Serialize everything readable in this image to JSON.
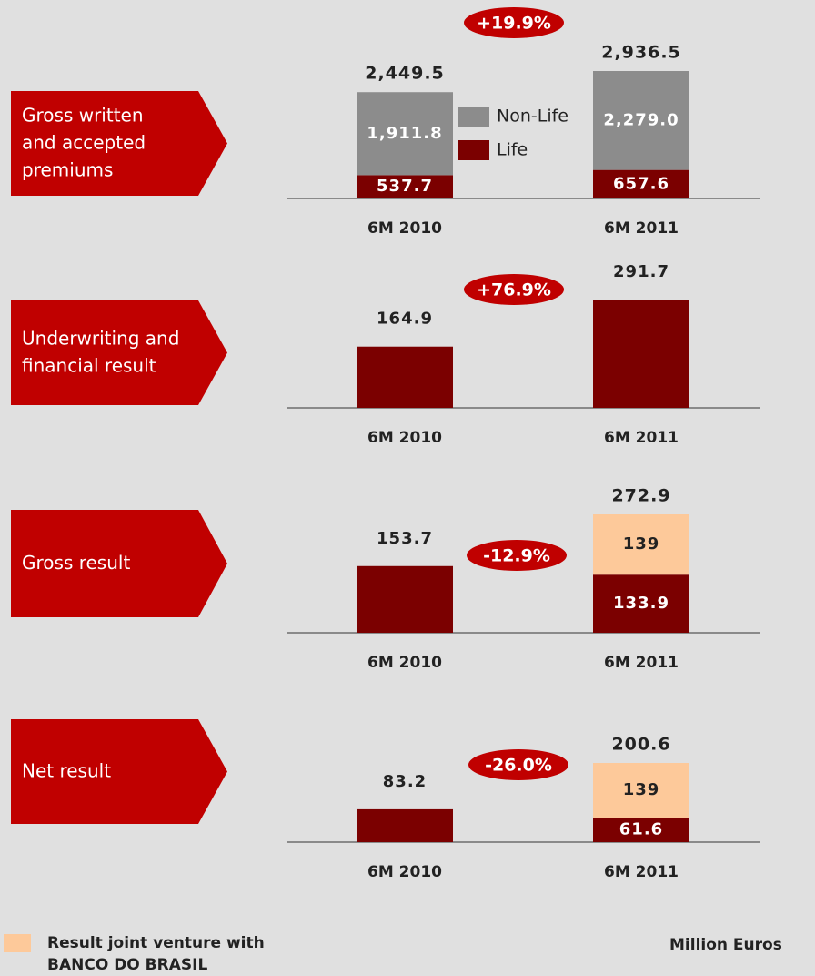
{
  "unit_note": "Million Euros",
  "legend": {
    "label": "Result joint venture with BANCO DO BRASIL",
    "color": "#fdc99a"
  },
  "chart_data": [
    {
      "type": "bar",
      "label": "Gross written and accepted premiums",
      "categories": [
        "6M 2010",
        "6M 2011"
      ],
      "series": [
        {
          "name": "Life",
          "color": "#7b0000",
          "values": [
            537.7,
            657.6
          ]
        },
        {
          "name": "Non-Life",
          "color": "#8c8c8c",
          "values": [
            1911.8,
            2279.0
          ],
          "value_labels": [
            "1,911.8",
            "2,279.0"
          ]
        }
      ],
      "totals": [
        2449.5,
        2936.5
      ],
      "total_labels": [
        "2,449.5",
        "2,936.5"
      ],
      "change": {
        "value": 19.9,
        "label": "+19.9%"
      }
    },
    {
      "type": "bar",
      "label": "Underwriting and financial result",
      "categories": [
        "6M 2010",
        "6M 2011"
      ],
      "series": [
        {
          "color": "#7b0000",
          "values": [
            164.9,
            291.7
          ]
        }
      ],
      "change": {
        "value": 76.9,
        "label": "+76.9%"
      }
    },
    {
      "type": "bar",
      "label": "Gross result",
      "categories": [
        "6M 2010",
        "6M 2011"
      ],
      "series": [
        {
          "color": "#7b0000",
          "values": [
            153.7,
            133.9
          ]
        },
        {
          "color": "#fdc99a",
          "values": [
            null,
            139.0
          ]
        }
      ],
      "totals": [
        null,
        272.9
      ],
      "change": {
        "value": -12.9,
        "label": "-12.9%"
      }
    },
    {
      "type": "bar",
      "label": "Net result",
      "categories": [
        "6M 2010",
        "6M 2011"
      ],
      "series": [
        {
          "color": "#7b0000",
          "values": [
            83.2,
            61.6
          ]
        },
        {
          "color": "#fdc99a",
          "values": [
            null,
            139.0
          ]
        }
      ],
      "totals": [
        null,
        200.6
      ],
      "change": {
        "value": -26.0,
        "label": "-26.0%"
      }
    }
  ]
}
